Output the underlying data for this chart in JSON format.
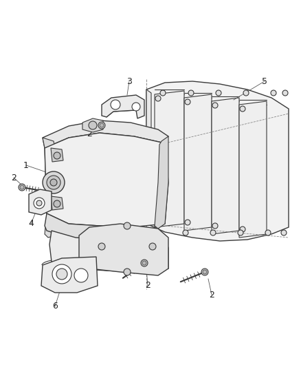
{
  "background_color": "#ffffff",
  "line_color": "#3a3a3a",
  "label_color": "#222222",
  "fig_width": 4.38,
  "fig_height": 5.33,
  "dpi": 100
}
